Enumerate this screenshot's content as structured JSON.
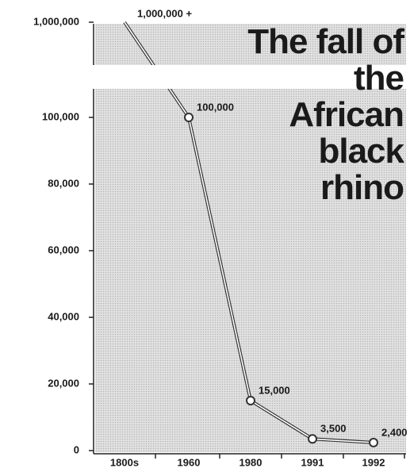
{
  "chart_data": {
    "type": "line",
    "title": "The fall of the African black rhino",
    "categories": [
      "1800s",
      "1960",
      "1980",
      "1991",
      "1992"
    ],
    "values": [
      1000000,
      100000,
      15000,
      3500,
      2400
    ],
    "value_labels": [
      "1,000,000 +",
      "100,000",
      "15,000",
      "3,500",
      "2,400"
    ],
    "color": "#333333",
    "ylim": [
      0,
      1000000
    ],
    "yticks": [
      0,
      {
        "value": 20000,
        "label": "20,000"
      },
      {
        "value": 40000,
        "label": "40,000"
      },
      {
        "value": 60000,
        "label": "60,000"
      },
      {
        "value": 80000,
        "label": "80,000"
      },
      {
        "value": 100000,
        "label": "100,000"
      },
      {
        "value": 1000000,
        "label": "1,000,000"
      }
    ]
  }
}
